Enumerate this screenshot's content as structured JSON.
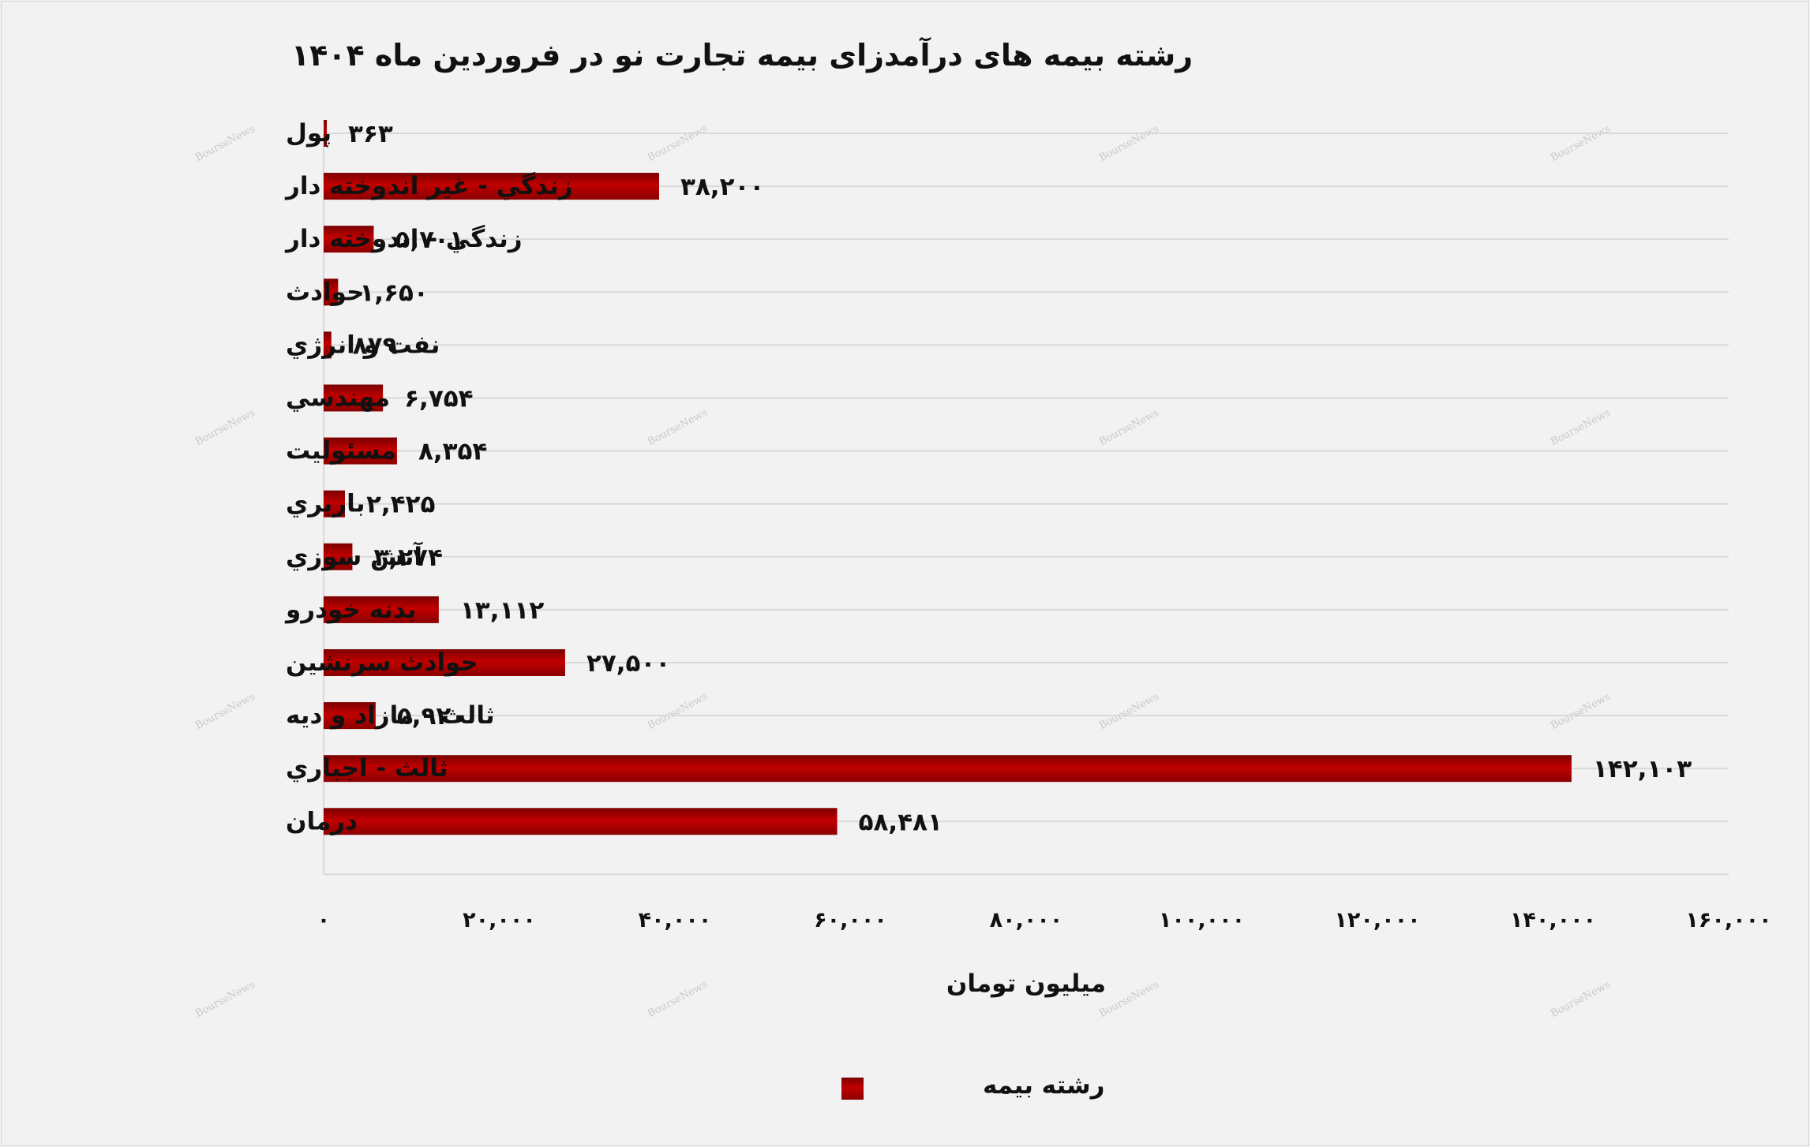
{
  "chart_data": {
    "type": "bar",
    "orientation": "horizontal",
    "title": "رشته بیمه های درآمدزای بیمه تجارت نو در فروردین ماه ۱۴۰۴",
    "xlabel": "میلیون تومان",
    "ylabel": "",
    "xlim": [
      0,
      160000
    ],
    "grid": true,
    "legend_position": "bottom",
    "categories": [
      "پول",
      "زندگي - غير اندوخته دار",
      "زندگي - اندوخته دار",
      "حوادث",
      "نفت و انرژي",
      "مهندسي",
      "مسئوليت",
      "باربري",
      "آتش سوزي",
      "بدنه خودرو",
      "حوادث سرنشين",
      "ثالث - مازاد و ديه",
      "ثالث - اجباري",
      "درمان"
    ],
    "series": [
      {
        "name": "رشته بیمه",
        "color": "#c00000",
        "values": [
          363,
          38200,
          5701,
          1650,
          879,
          6754,
          8354,
          2425,
          3274,
          13112,
          27500,
          5920,
          142103,
          58481
        ],
        "value_labels": [
          "۳۶۳",
          "۳۸,۲۰۰",
          "۵,۷۰۱",
          "۱,۶۵۰",
          "۸۷۹",
          "۶,۷۵۴",
          "۸,۳۵۴",
          "۲,۴۲۵",
          "۳,۲۷۴",
          "۱۳,۱۱۲",
          "۲۷,۵۰۰",
          "۵,۹۲۰",
          "۱۴۲,۱۰۳",
          "۵۸,۴۸۱"
        ]
      }
    ],
    "x_ticks": [
      0,
      20000,
      40000,
      60000,
      80000,
      100000,
      120000,
      140000,
      160000
    ],
    "x_tick_labels": [
      "۰",
      "۲۰,۰۰۰",
      "۴۰,۰۰۰",
      "۶۰,۰۰۰",
      "۸۰,۰۰۰",
      "۱۰۰,۰۰۰",
      "۱۲۰,۰۰۰",
      "۱۴۰,۰۰۰",
      "۱۶۰,۰۰۰"
    ]
  },
  "watermark": "BourseNews",
  "colors": {
    "bar": "#c00000",
    "bar_dark": "#7a0000",
    "grid": "#d9d9d9",
    "background": "#f2f2f2"
  }
}
